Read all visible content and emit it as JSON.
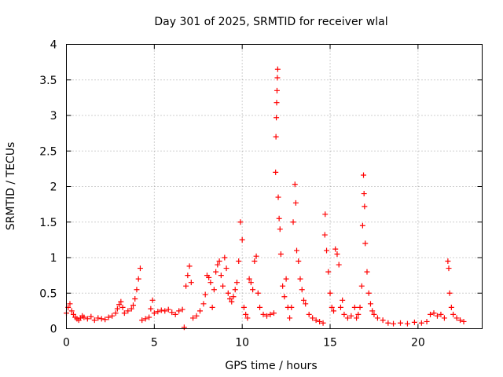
{
  "chart_data": {
    "type": "scatter",
    "title": "Day 301 of 2025, SRMTID for receiver wlal",
    "xlabel": "GPS time / hours",
    "ylabel": "SRMTID / TECUs",
    "xlim": [
      0,
      23.65
    ],
    "ylim": [
      0,
      4
    ],
    "xticks": [
      0,
      5,
      10,
      15,
      20
    ],
    "xtick_labels": [
      "0",
      "5",
      "10",
      "15",
      "20"
    ],
    "yticks": [
      0,
      0.5,
      1,
      1.5,
      2,
      2.5,
      3,
      3.5,
      4
    ],
    "ytick_labels": [
      "0",
      "0.5",
      "1",
      "1.5",
      "2",
      "2.5",
      "3",
      "3.5",
      "4"
    ],
    "grid": true,
    "marker": "+",
    "marker_color": "#ff0000",
    "series": [
      {
        "name": "SRMTID",
        "points": [
          [
            0.0,
            0.22
          ],
          [
            0.1,
            0.3
          ],
          [
            0.2,
            0.35
          ],
          [
            0.3,
            0.25
          ],
          [
            0.4,
            0.2
          ],
          [
            0.5,
            0.16
          ],
          [
            0.6,
            0.14
          ],
          [
            0.7,
            0.12
          ],
          [
            0.8,
            0.15
          ],
          [
            0.9,
            0.18
          ],
          [
            1.0,
            0.16
          ],
          [
            1.2,
            0.14
          ],
          [
            1.4,
            0.17
          ],
          [
            1.6,
            0.12
          ],
          [
            1.8,
            0.15
          ],
          [
            2.0,
            0.14
          ],
          [
            2.2,
            0.13
          ],
          [
            2.4,
            0.16
          ],
          [
            2.6,
            0.18
          ],
          [
            2.8,
            0.22
          ],
          [
            2.9,
            0.28
          ],
          [
            3.0,
            0.34
          ],
          [
            3.1,
            0.38
          ],
          [
            3.2,
            0.3
          ],
          [
            3.3,
            0.22
          ],
          [
            3.5,
            0.25
          ],
          [
            3.7,
            0.28
          ],
          [
            3.8,
            0.33
          ],
          [
            3.9,
            0.42
          ],
          [
            4.0,
            0.55
          ],
          [
            4.1,
            0.7
          ],
          [
            4.2,
            0.85
          ],
          [
            4.3,
            0.12
          ],
          [
            4.5,
            0.14
          ],
          [
            4.7,
            0.16
          ],
          [
            4.8,
            0.28
          ],
          [
            4.9,
            0.4
          ],
          [
            5.0,
            0.22
          ],
          [
            5.2,
            0.24
          ],
          [
            5.4,
            0.26
          ],
          [
            5.6,
            0.25
          ],
          [
            5.8,
            0.27
          ],
          [
            6.0,
            0.23
          ],
          [
            6.2,
            0.2
          ],
          [
            6.4,
            0.25
          ],
          [
            6.6,
            0.27
          ],
          [
            6.7,
            0.02
          ],
          [
            6.8,
            0.6
          ],
          [
            6.9,
            0.75
          ],
          [
            7.0,
            0.88
          ],
          [
            7.1,
            0.65
          ],
          [
            7.2,
            0.15
          ],
          [
            7.4,
            0.18
          ],
          [
            7.6,
            0.25
          ],
          [
            7.8,
            0.35
          ],
          [
            7.9,
            0.48
          ],
          [
            8.0,
            0.75
          ],
          [
            8.1,
            0.72
          ],
          [
            8.2,
            0.65
          ],
          [
            8.3,
            0.3
          ],
          [
            8.4,
            0.55
          ],
          [
            8.5,
            0.8
          ],
          [
            8.6,
            0.9
          ],
          [
            8.7,
            0.95
          ],
          [
            8.8,
            0.75
          ],
          [
            8.9,
            0.6
          ],
          [
            9.0,
            1.0
          ],
          [
            9.1,
            0.85
          ],
          [
            9.2,
            0.5
          ],
          [
            9.3,
            0.42
          ],
          [
            9.4,
            0.38
          ],
          [
            9.5,
            0.45
          ],
          [
            9.6,
            0.55
          ],
          [
            9.7,
            0.65
          ],
          [
            9.8,
            0.95
          ],
          [
            9.9,
            1.5
          ],
          [
            10.0,
            1.25
          ],
          [
            10.1,
            0.3
          ],
          [
            10.2,
            0.2
          ],
          [
            10.3,
            0.15
          ],
          [
            10.4,
            0.7
          ],
          [
            10.5,
            0.65
          ],
          [
            10.6,
            0.55
          ],
          [
            10.7,
            0.95
          ],
          [
            10.8,
            1.02
          ],
          [
            10.9,
            0.5
          ],
          [
            11.0,
            0.3
          ],
          [
            11.2,
            0.2
          ],
          [
            11.4,
            0.18
          ],
          [
            11.6,
            0.2
          ],
          [
            11.8,
            0.22
          ],
          [
            11.9,
            2.2
          ],
          [
            11.92,
            2.7
          ],
          [
            11.94,
            2.97
          ],
          [
            11.96,
            3.18
          ],
          [
            11.98,
            3.35
          ],
          [
            12.0,
            3.53
          ],
          [
            12.02,
            3.65
          ],
          [
            12.05,
            1.85
          ],
          [
            12.1,
            1.55
          ],
          [
            12.15,
            1.4
          ],
          [
            12.2,
            1.05
          ],
          [
            12.3,
            0.6
          ],
          [
            12.4,
            0.45
          ],
          [
            12.5,
            0.7
          ],
          [
            12.6,
            0.3
          ],
          [
            12.7,
            0.15
          ],
          [
            12.8,
            0.3
          ],
          [
            12.9,
            1.5
          ],
          [
            13.0,
            2.03
          ],
          [
            13.05,
            1.77
          ],
          [
            13.1,
            1.1
          ],
          [
            13.2,
            0.95
          ],
          [
            13.3,
            0.7
          ],
          [
            13.4,
            0.55
          ],
          [
            13.5,
            0.4
          ],
          [
            13.6,
            0.35
          ],
          [
            13.8,
            0.2
          ],
          [
            14.0,
            0.15
          ],
          [
            14.2,
            0.12
          ],
          [
            14.4,
            0.1
          ],
          [
            14.6,
            0.08
          ],
          [
            14.7,
            1.32
          ],
          [
            14.72,
            1.61
          ],
          [
            14.8,
            1.1
          ],
          [
            14.9,
            0.8
          ],
          [
            15.0,
            0.5
          ],
          [
            15.1,
            0.3
          ],
          [
            15.2,
            0.25
          ],
          [
            15.3,
            1.12
          ],
          [
            15.4,
            1.05
          ],
          [
            15.5,
            0.9
          ],
          [
            15.6,
            0.3
          ],
          [
            15.7,
            0.4
          ],
          [
            15.8,
            0.2
          ],
          [
            16.0,
            0.15
          ],
          [
            16.2,
            0.18
          ],
          [
            16.4,
            0.3
          ],
          [
            16.5,
            0.15
          ],
          [
            16.6,
            0.2
          ],
          [
            16.7,
            0.3
          ],
          [
            16.8,
            0.6
          ],
          [
            16.85,
            1.45
          ],
          [
            16.9,
            2.16
          ],
          [
            16.93,
            1.9
          ],
          [
            16.96,
            1.72
          ],
          [
            17.0,
            1.2
          ],
          [
            17.1,
            0.8
          ],
          [
            17.2,
            0.5
          ],
          [
            17.3,
            0.35
          ],
          [
            17.4,
            0.25
          ],
          [
            17.5,
            0.2
          ],
          [
            17.7,
            0.15
          ],
          [
            18.0,
            0.12
          ],
          [
            18.3,
            0.08
          ],
          [
            18.6,
            0.07
          ],
          [
            19.0,
            0.08
          ],
          [
            19.4,
            0.07
          ],
          [
            19.8,
            0.09
          ],
          [
            20.2,
            0.08
          ],
          [
            20.5,
            0.1
          ],
          [
            20.7,
            0.2
          ],
          [
            20.9,
            0.22
          ],
          [
            21.1,
            0.18
          ],
          [
            21.3,
            0.2
          ],
          [
            21.5,
            0.15
          ],
          [
            21.7,
            0.95
          ],
          [
            21.75,
            0.85
          ],
          [
            21.8,
            0.5
          ],
          [
            21.9,
            0.3
          ],
          [
            22.0,
            0.2
          ],
          [
            22.2,
            0.15
          ],
          [
            22.4,
            0.12
          ],
          [
            22.6,
            0.1
          ]
        ]
      }
    ]
  }
}
